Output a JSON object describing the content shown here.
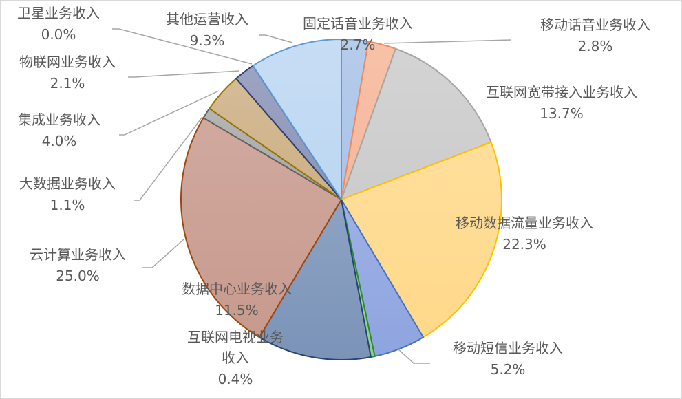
{
  "chart_data": {
    "type": "pie",
    "title": "",
    "unit": "%",
    "slices": [
      {
        "label": "固定话音业务收入",
        "value": 2.7,
        "display": "2.7%",
        "color": "#a9c3e8",
        "stroke": "#6f9ad6"
      },
      {
        "label": "移动话音业务收入",
        "value": 2.8,
        "display": "2.8%",
        "color": "#f6b79a",
        "stroke": "#f08a5e"
      },
      {
        "label": "互联网宽带接入业务收入",
        "value": 13.7,
        "display": "13.7%",
        "color": "#cccccc",
        "stroke": "#a6a6a6"
      },
      {
        "label": "移动数据流量业务收入",
        "value": 22.3,
        "display": "22.3%",
        "color": "#ffd98a",
        "stroke": "#ffc000"
      },
      {
        "label": "移动短信业务收入",
        "value": 5.2,
        "display": "5.2%",
        "color": "#8ea4e0",
        "stroke": "#4472c4"
      },
      {
        "label": "互联网电视业务收入",
        "label_lines": [
          "互联网电视业务",
          "收入"
        ],
        "value": 0.4,
        "display": "0.4%",
        "color": "#8fd18b",
        "stroke": "#2f8a2f"
      },
      {
        "label": "数据中心业务收入",
        "value": 11.5,
        "display": "11.5%",
        "color": "#7a93b8",
        "stroke": "#264478"
      },
      {
        "label": "云计算业务收入",
        "value": 25.0,
        "display": "25.0%",
        "color": "#c89a8e",
        "stroke": "#9e480e"
      },
      {
        "label": "大数据业务收入",
        "value": 1.1,
        "display": "1.1%",
        "color": "#a8a8a8",
        "stroke": "#636363"
      },
      {
        "label": "集成业务收入",
        "value": 4.0,
        "display": "4.0%",
        "color": "#cdb085",
        "stroke": "#997300"
      },
      {
        "label": "物联网业务收入",
        "value": 2.1,
        "display": "2.1%",
        "color": "#8c94b8",
        "stroke": "#2f3f6e"
      },
      {
        "label": "卫星业务收入",
        "value": 0.0,
        "display": "0.0%",
        "color": "#7fa6c8",
        "stroke": "#1f4e79"
      },
      {
        "label": "其他运营收入",
        "value": 9.3,
        "display": "9.3%",
        "color": "#bdd7f2",
        "stroke": "#5b9bd5"
      }
    ]
  }
}
